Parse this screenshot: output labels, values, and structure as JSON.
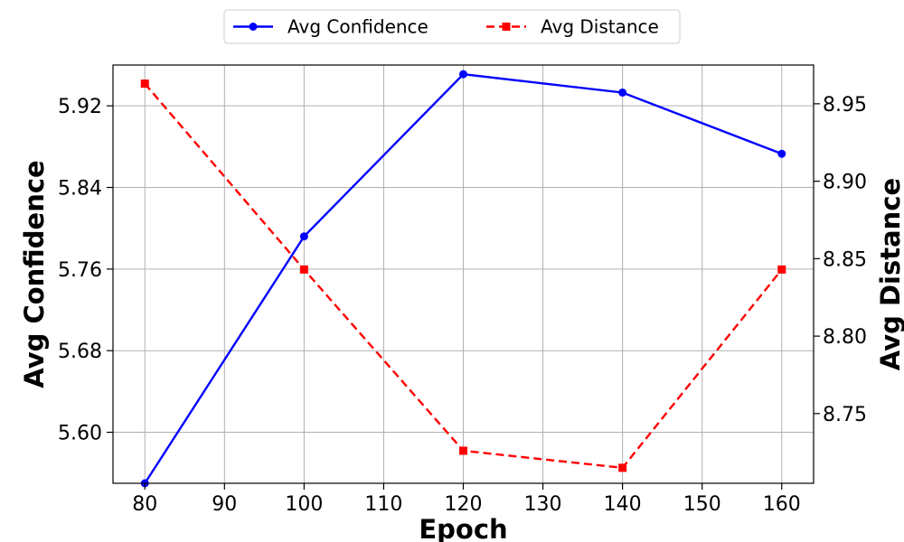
{
  "chart_data": {
    "type": "line",
    "xlabel": "Epoch",
    "ylabel_left": "Avg Confidence",
    "ylabel_right": "Avg Distance",
    "x": [
      80,
      100,
      120,
      140,
      160
    ],
    "xlim": [
      76,
      164
    ],
    "xticks": [
      "80",
      "90",
      "100",
      "110",
      "120",
      "130",
      "140",
      "150",
      "160"
    ],
    "ylim_left": [
      5.55,
      5.96
    ],
    "yticks_left": [
      "5.60",
      "5.68",
      "5.76",
      "5.84",
      "5.92"
    ],
    "ylim_right": [
      8.705,
      8.975
    ],
    "yticks_right": [
      "8.75",
      "8.80",
      "8.85",
      "8.90",
      "8.95"
    ],
    "grid": true,
    "legend_position": "top-center",
    "series": [
      {
        "name": "Avg Confidence",
        "axis": "left",
        "color": "#0000ff",
        "line_style": "solid",
        "marker": "circle",
        "values": [
          5.55,
          5.792,
          5.951,
          5.933,
          5.873
        ]
      },
      {
        "name": "Avg Distance",
        "axis": "right",
        "color": "#ff0000",
        "line_style": "dashed",
        "marker": "square",
        "values": [
          8.963,
          8.843,
          8.726,
          8.715,
          8.843
        ]
      }
    ]
  }
}
